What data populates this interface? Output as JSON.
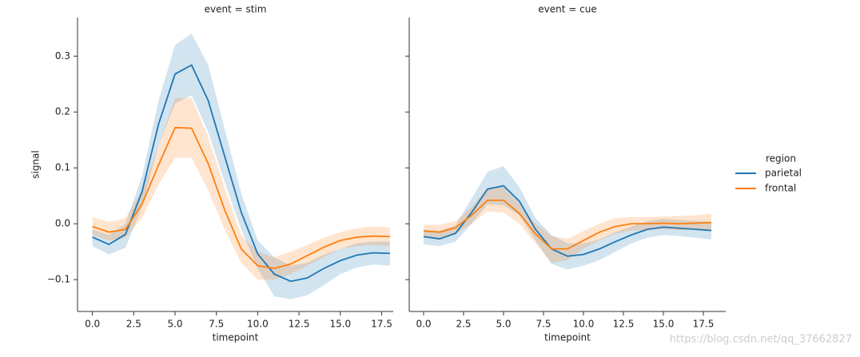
{
  "watermark": "https://blog.csdn.net/qq_37662827",
  "chart_data": [
    {
      "type": "line",
      "title": "event = stim",
      "xlabel": "timepoint",
      "ylabel": "signal",
      "legend_title": "region",
      "x": [
        0,
        1,
        2,
        3,
        4,
        5,
        6,
        7,
        8,
        9,
        10,
        11,
        12,
        13,
        14,
        15,
        16,
        17,
        18
      ],
      "xlim": [
        -0.9,
        18.2
      ],
      "ylim": [
        -0.157,
        0.369
      ],
      "xticks": [
        {
          "value": 0,
          "label": "0.0"
        },
        2.5,
        {
          "value": 5,
          "label": "5.0"
        },
        7.5,
        {
          "value": 10,
          "label": "10.0"
        },
        12.5,
        {
          "value": 15,
          "label": "15.0"
        },
        17.5
      ],
      "yticks": [
        {
          "value": -0.1,
          "label": "−0.1"
        },
        {
          "value": 0,
          "label": "0.0"
        },
        0.1,
        0.2,
        0.3
      ],
      "series": [
        {
          "name": "parietal",
          "color": "#1f77b4",
          "values": [
            -0.024,
            -0.037,
            -0.019,
            0.057,
            0.178,
            0.268,
            0.284,
            0.221,
            0.121,
            0.021,
            -0.054,
            -0.09,
            -0.103,
            -0.097,
            -0.08,
            -0.066,
            -0.056,
            -0.052,
            -0.053
          ],
          "lower": [
            -0.04,
            -0.055,
            -0.043,
            0.03,
            0.14,
            0.215,
            0.23,
            0.165,
            0.075,
            -0.01,
            -0.08,
            -0.13,
            -0.135,
            -0.128,
            -0.11,
            -0.09,
            -0.078,
            -0.073,
            -0.075
          ],
          "upper": [
            -0.01,
            -0.02,
            0.0,
            0.085,
            0.22,
            0.32,
            0.34,
            0.285,
            0.17,
            0.055,
            -0.03,
            -0.06,
            -0.075,
            -0.07,
            -0.055,
            -0.045,
            -0.035,
            -0.032,
            -0.032
          ]
        },
        {
          "name": "frontal",
          "color": "#ff7f0e",
          "values": [
            -0.005,
            -0.015,
            -0.01,
            0.035,
            0.105,
            0.172,
            0.171,
            0.108,
            0.025,
            -0.045,
            -0.075,
            -0.08,
            -0.072,
            -0.057,
            -0.042,
            -0.03,
            -0.024,
            -0.022,
            -0.023
          ],
          "lower": [
            -0.02,
            -0.03,
            -0.025,
            0.01,
            0.07,
            0.118,
            0.118,
            0.06,
            -0.01,
            -0.07,
            -0.1,
            -0.1,
            -0.09,
            -0.075,
            -0.06,
            -0.045,
            -0.04,
            -0.038,
            -0.04
          ],
          "upper": [
            0.012,
            0.003,
            0.01,
            0.06,
            0.14,
            0.225,
            0.225,
            0.155,
            0.065,
            -0.02,
            -0.05,
            -0.06,
            -0.05,
            -0.038,
            -0.025,
            -0.015,
            -0.008,
            -0.005,
            -0.006
          ]
        }
      ]
    },
    {
      "type": "line",
      "title": "event = cue",
      "xlabel": "timepoint",
      "x": [
        0,
        1,
        2,
        3,
        4,
        5,
        6,
        7,
        8,
        9,
        10,
        11,
        12,
        13,
        14,
        15,
        16,
        17,
        18
      ],
      "xlim": [
        -0.9,
        18.9
      ],
      "ylim": [
        -0.157,
        0.369
      ],
      "xticks": [
        {
          "value": 0,
          "label": "0.0"
        },
        2.5,
        {
          "value": 5,
          "label": "5.0"
        },
        7.5,
        {
          "value": 10,
          "label": "10.0"
        },
        12.5,
        {
          "value": 15,
          "label": "15.0"
        },
        17.5
      ],
      "yticks": [
        -0.1,
        0,
        0.1,
        0.2,
        0.3
      ],
      "series": [
        {
          "name": "parietal",
          "color": "#1f77b4",
          "values": [
            -0.023,
            -0.027,
            -0.017,
            0.02,
            0.062,
            0.068,
            0.04,
            -0.01,
            -0.045,
            -0.058,
            -0.055,
            -0.045,
            -0.032,
            -0.02,
            -0.01,
            -0.006,
            -0.008,
            -0.01,
            -0.012
          ],
          "lower": [
            -0.037,
            -0.04,
            -0.032,
            0.0,
            0.035,
            0.033,
            0.015,
            -0.03,
            -0.072,
            -0.082,
            -0.075,
            -0.065,
            -0.05,
            -0.035,
            -0.025,
            -0.02,
            -0.022,
            -0.025,
            -0.028
          ],
          "upper": [
            -0.01,
            -0.013,
            -0.003,
            0.045,
            0.093,
            0.103,
            0.065,
            0.01,
            -0.02,
            -0.035,
            -0.035,
            -0.028,
            -0.015,
            -0.005,
            0.005,
            0.009,
            0.007,
            0.005,
            0.004
          ]
        },
        {
          "name": "frontal",
          "color": "#ff7f0e",
          "values": [
            -0.013,
            -0.015,
            -0.007,
            0.015,
            0.042,
            0.042,
            0.018,
            -0.018,
            -0.045,
            -0.045,
            -0.03,
            -0.015,
            -0.005,
            0.0,
            0.0,
            0.001,
            0.0,
            0.001,
            0.002
          ],
          "lower": [
            -0.025,
            -0.028,
            -0.018,
            0.0,
            0.022,
            0.02,
            0.0,
            -0.035,
            -0.07,
            -0.065,
            -0.045,
            -0.03,
            -0.018,
            -0.012,
            -0.012,
            -0.01,
            -0.012,
            -0.01,
            -0.01
          ],
          "upper": [
            -0.002,
            -0.002,
            0.005,
            0.03,
            0.065,
            0.065,
            0.035,
            0.0,
            -0.022,
            -0.027,
            -0.013,
            0.0,
            0.01,
            0.012,
            0.012,
            0.013,
            0.014,
            0.015,
            0.018
          ]
        }
      ]
    }
  ]
}
